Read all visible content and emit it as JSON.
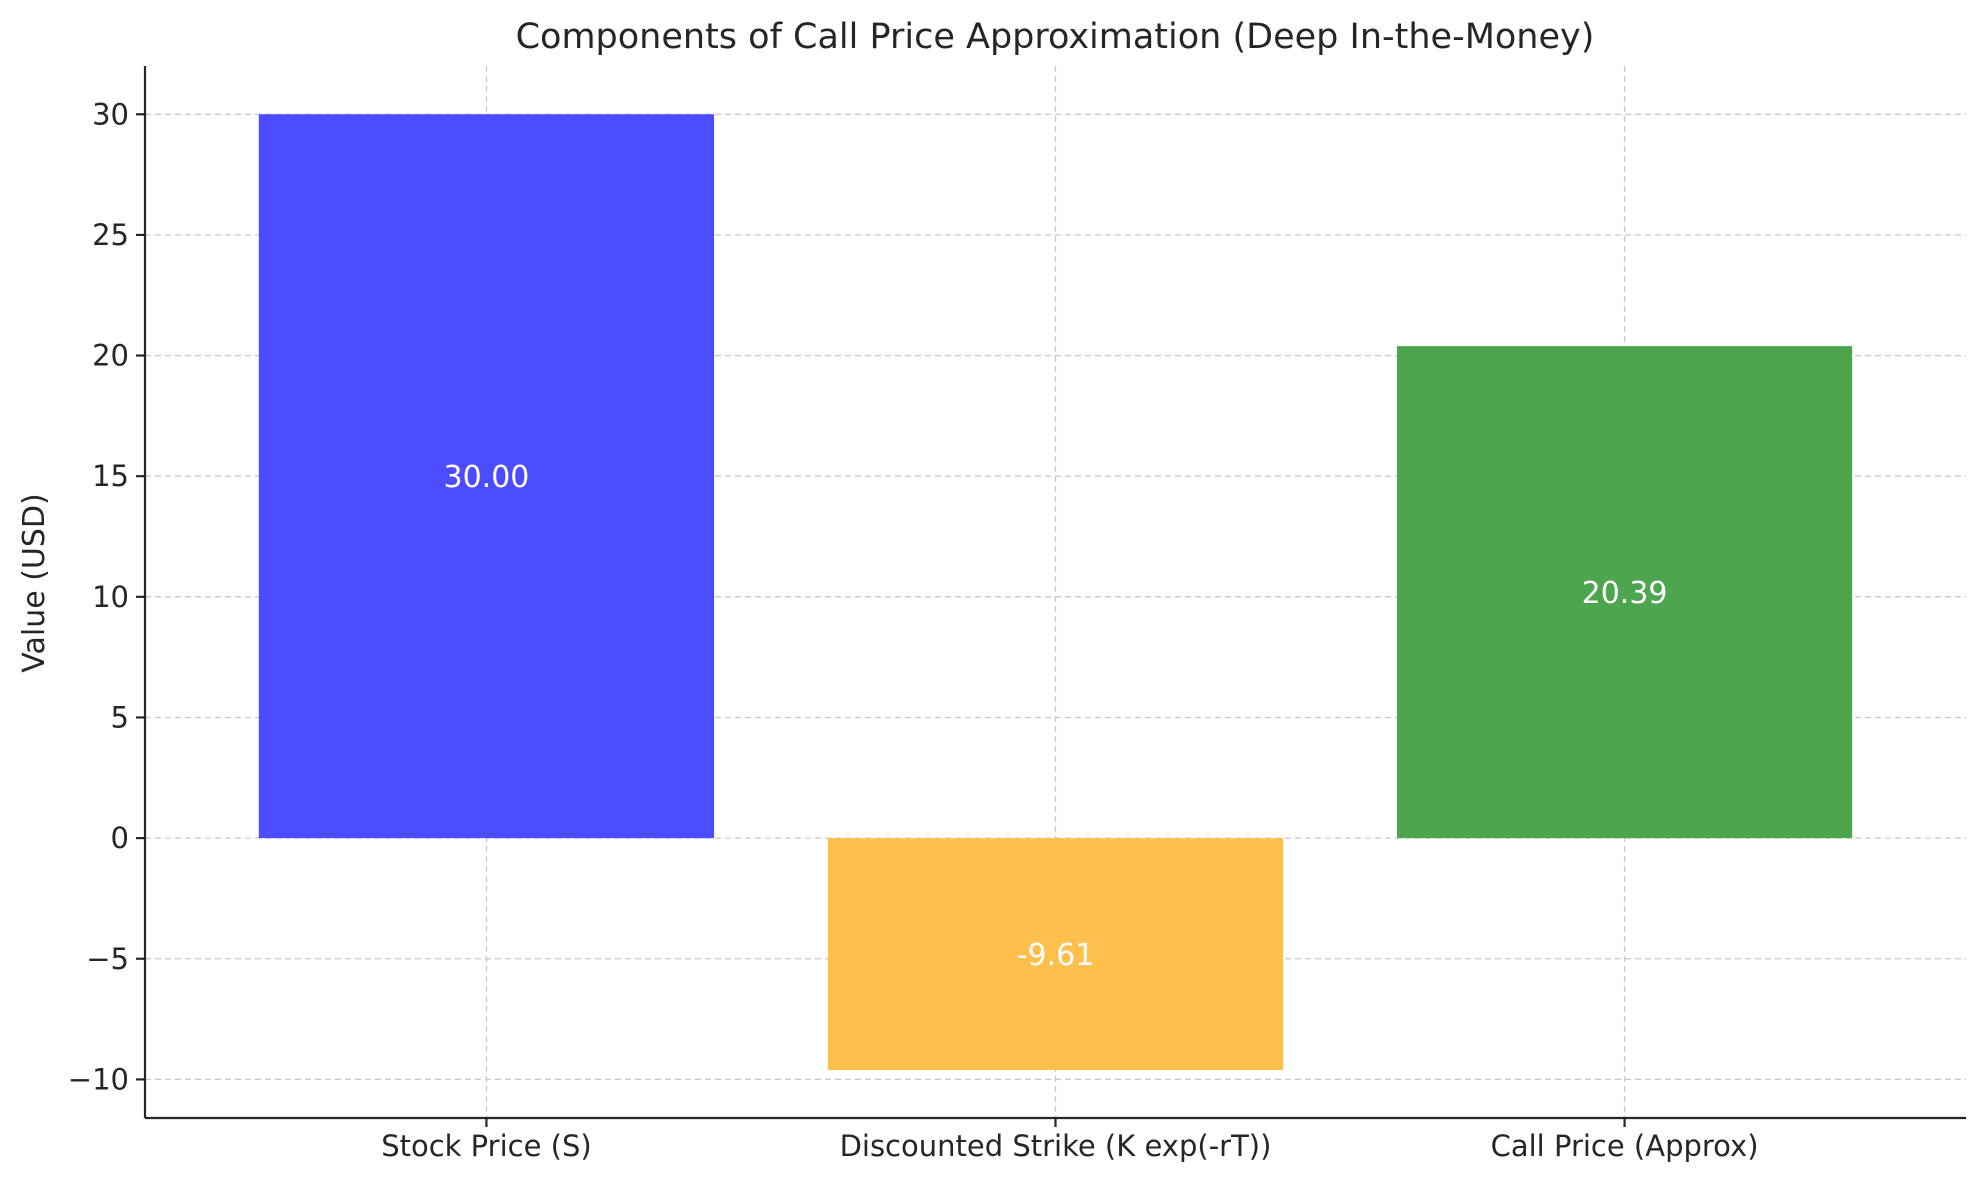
{
  "chart_data": {
    "type": "bar",
    "title": "Components of Call Price Approximation (Deep In-the-Money)",
    "xlabel": "",
    "ylabel": "Value (USD)",
    "categories": [
      "Stock Price (S)",
      "Discounted Strike (K exp(-rT))",
      "Call Price (Approx)"
    ],
    "values": [
      30.0,
      -9.61,
      20.39
    ],
    "bar_labels": [
      "30.00",
      "-9.61",
      "20.39"
    ],
    "colors": [
      "#4b4bff",
      "#ffbf4d",
      "#4da64d"
    ],
    "ylim": [
      -11.6,
      32
    ],
    "yticks": [
      -10,
      -5,
      0,
      5,
      10,
      15,
      20,
      25,
      30
    ],
    "ytick_labels": [
      "−10",
      "−5",
      "0",
      "5",
      "10",
      "15",
      "20",
      "25",
      "30"
    ],
    "grid": true,
    "grid_style": "dashed",
    "legend": "none"
  }
}
